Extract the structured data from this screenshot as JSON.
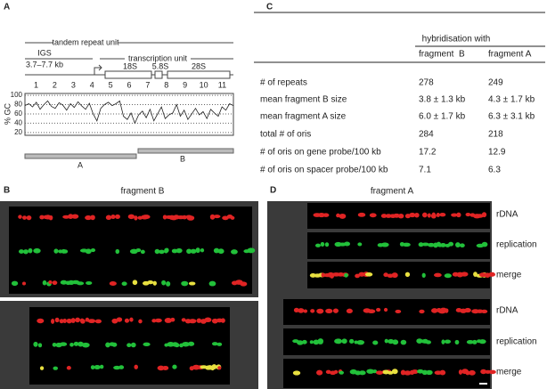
{
  "panel_a": {
    "label": "A",
    "tandem_repeat_unit": "tandem repeat unit",
    "igs": "IGS",
    "igs_size": "3.7–7.7 kb",
    "transcription_unit": "transcription unit",
    "genes": [
      "18S",
      "5.8S",
      "28S"
    ],
    "fragments": [
      "A",
      "B"
    ],
    "gc_chart": {
      "type": "line",
      "y_label": "% GC",
      "xlim": [
        0.4,
        11.6
      ],
      "xticks": [
        1,
        2,
        3,
        4,
        5,
        6,
        7,
        8,
        9,
        10,
        11
      ],
      "ylim": [
        14,
        104
      ],
      "yticks": [
        20,
        40,
        60,
        80,
        100
      ],
      "color": "#222222",
      "values": [
        78,
        82,
        75,
        85,
        70,
        80,
        88,
        76,
        72,
        84,
        79,
        68,
        82,
        74,
        86,
        77,
        70,
        83,
        60,
        45,
        72,
        80,
        85,
        78,
        82,
        88,
        55,
        48,
        62,
        40,
        58,
        66,
        52,
        70,
        45,
        60,
        75,
        50,
        58,
        62,
        80,
        55,
        68,
        48,
        60,
        72,
        58,
        65,
        50,
        70,
        62,
        55,
        75,
        68,
        82,
        78
      ]
    }
  },
  "panel_c": {
    "label": "C",
    "header": "hybridisation with",
    "columns": [
      "fragment  B",
      "fragment A"
    ],
    "rows": [
      [
        "# of repeats",
        "278",
        "249"
      ],
      [
        "mean fragment B size",
        "3.8 ± 1.3 kb",
        "4.3 ± 1.7 kb"
      ],
      [
        "mean fragment A size",
        "6.0 ± 1.7 kb",
        "6.3 ± 3.1 kb"
      ],
      [
        "total # of oris",
        "284",
        "218"
      ],
      [
        "# of oris on gene probe/100 kb",
        "17.2",
        "12.9"
      ],
      [
        "# of oris on spacer probe/100 kb",
        "7.1",
        "6.3"
      ]
    ]
  },
  "panel_b": {
    "label": "B",
    "title": "fragment B"
  },
  "panel_d": {
    "label": "D",
    "title": "fragment A",
    "channels": [
      "rDNA",
      "replication",
      "merge",
      "rDNA",
      "replication",
      "merge"
    ]
  }
}
